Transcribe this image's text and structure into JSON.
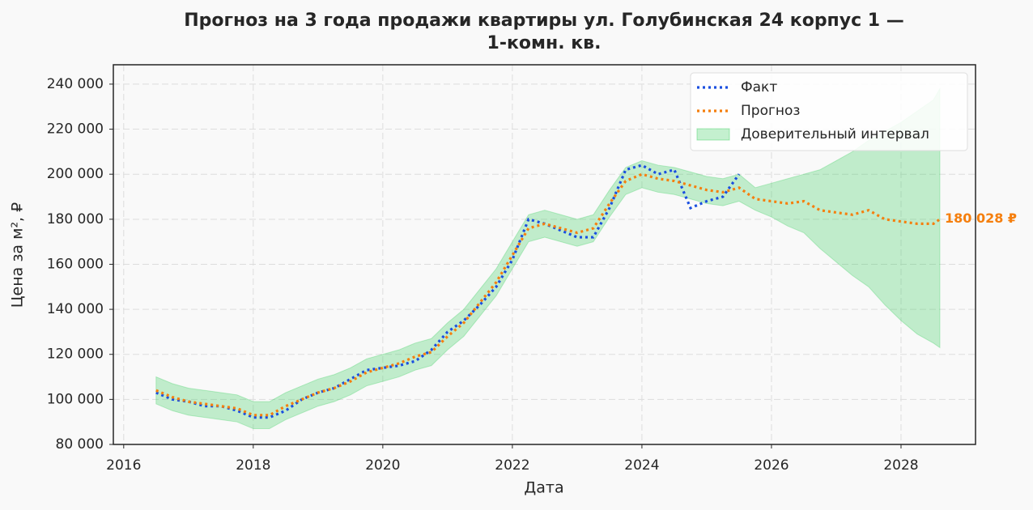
{
  "chart_data": {
    "type": "line",
    "title": [
      "Прогноз на 3 года продажи квартиры  ул. Голубинская 24 корпус 1 —",
      "1-комн. кв."
    ],
    "x_label": "Дата",
    "y_label": "Цена за м², ₽",
    "xlim": [
      2015.84,
      2029.15
    ],
    "xticks": [
      2016,
      2018,
      2020,
      2022,
      2024,
      2026,
      2028
    ],
    "ylim": [
      80000,
      248600
    ],
    "yticks": [
      {
        "value": 80000,
        "label": "80 000"
      },
      {
        "value": 100000,
        "label": "100 000"
      },
      {
        "value": 120000,
        "label": "120 000"
      },
      {
        "value": 140000,
        "label": "140 000"
      },
      {
        "value": 160000,
        "label": "160 000"
      },
      {
        "value": 180000,
        "label": "180 000"
      },
      {
        "value": 200000,
        "label": "200 000"
      },
      {
        "value": 220000,
        "label": "220 000"
      },
      {
        "value": 240000,
        "label": "240 000"
      }
    ],
    "grid": true,
    "legend": "upper right",
    "series": [
      {
        "name": "Факт",
        "color": "#1a4fe0",
        "x": [
          2016.5,
          2016.75,
          2017,
          2017.25,
          2017.5,
          2017.75,
          2018,
          2018.25,
          2018.5,
          2018.75,
          2019,
          2019.25,
          2019.5,
          2019.75,
          2020,
          2020.25,
          2020.5,
          2020.75,
          2021,
          2021.25,
          2021.5,
          2021.75,
          2022,
          2022.25,
          2022.5,
          2022.75,
          2023,
          2023.25,
          2023.5,
          2023.75,
          2024,
          2024.25,
          2024.5,
          2024.75,
          2025,
          2025.25,
          2025.5
        ],
        "values": [
          103000,
          100000,
          99000,
          97000,
          97000,
          95000,
          92000,
          92000,
          95000,
          100000,
          103000,
          105000,
          109000,
          113000,
          114000,
          115000,
          117000,
          122000,
          130000,
          135000,
          142000,
          150000,
          162000,
          180000,
          178000,
          175000,
          172000,
          172000,
          185000,
          202000,
          204000,
          200000,
          202000,
          185000,
          188000,
          190000,
          200000
        ]
      },
      {
        "name": "Прогноз",
        "color": "#f57f0e",
        "x": [
          2016.5,
          2016.75,
          2017,
          2017.25,
          2017.5,
          2017.75,
          2018,
          2018.25,
          2018.5,
          2018.75,
          2019,
          2019.25,
          2019.5,
          2019.75,
          2020,
          2020.25,
          2020.5,
          2020.75,
          2021,
          2021.25,
          2021.5,
          2021.75,
          2022,
          2022.25,
          2022.5,
          2022.75,
          2023,
          2023.25,
          2023.5,
          2023.75,
          2024,
          2024.25,
          2024.5,
          2024.75,
          2025,
          2025.25,
          2025.5,
          2025.75,
          2026,
          2026.25,
          2026.5,
          2026.75,
          2027,
          2027.25,
          2027.5,
          2027.75,
          2028,
          2028.25,
          2028.5,
          2028.6
        ],
        "values": [
          104000,
          101000,
          99000,
          98000,
          97000,
          96000,
          93000,
          93000,
          97000,
          100000,
          103000,
          105000,
          108000,
          112000,
          114000,
          116000,
          119000,
          121000,
          128000,
          134000,
          143000,
          152000,
          164000,
          176000,
          178000,
          176000,
          174000,
          176000,
          187000,
          197000,
          200000,
          198000,
          197000,
          195000,
          193000,
          192000,
          194000,
          189000,
          188000,
          187000,
          188000,
          184000,
          183000,
          182000,
          184000,
          180000,
          179000,
          178000,
          178000,
          180028
        ]
      },
      {
        "name": "Доверительный интервал",
        "color": "#2ecc55",
        "x": [
          2016.5,
          2016.75,
          2017,
          2017.25,
          2017.5,
          2017.75,
          2018,
          2018.25,
          2018.5,
          2018.75,
          2019,
          2019.25,
          2019.5,
          2019.75,
          2020,
          2020.25,
          2020.5,
          2020.75,
          2021,
          2021.25,
          2021.5,
          2021.75,
          2022,
          2022.25,
          2022.5,
          2022.75,
          2023,
          2023.25,
          2023.5,
          2023.75,
          2024,
          2024.25,
          2024.5,
          2024.75,
          2025,
          2025.25,
          2025.5,
          2025.75,
          2026,
          2026.25,
          2026.5,
          2026.75,
          2027,
          2027.25,
          2027.5,
          2027.75,
          2028,
          2028.25,
          2028.5,
          2028.6
        ],
        "lower": [
          98000,
          95000,
          93000,
          92000,
          91000,
          90000,
          87000,
          87000,
          91000,
          94000,
          97000,
          99000,
          102000,
          106000,
          108000,
          110000,
          113000,
          115000,
          122000,
          128000,
          137000,
          146000,
          158000,
          170000,
          172000,
          170000,
          168000,
          170000,
          181000,
          191000,
          194000,
          192000,
          191000,
          189000,
          187000,
          186000,
          188000,
          184000,
          181000,
          177000,
          174000,
          167000,
          161000,
          155000,
          150000,
          142000,
          135000,
          129000,
          125000,
          123000
        ],
        "upper": [
          110000,
          107000,
          105000,
          104000,
          103000,
          102000,
          99000,
          99000,
          103000,
          106000,
          109000,
          111000,
          114000,
          118000,
          120000,
          122000,
          125000,
          127000,
          134000,
          140000,
          149000,
          158000,
          170000,
          182000,
          184000,
          182000,
          180000,
          182000,
          193000,
          203000,
          206000,
          204000,
          203000,
          201000,
          199000,
          198000,
          200000,
          194000,
          196000,
          198000,
          200000,
          202000,
          206000,
          210000,
          215000,
          219000,
          223000,
          228000,
          233000,
          238000
        ]
      }
    ],
    "annotation": {
      "label": "180 028 ₽",
      "value": 180028,
      "x": 2028.6
    }
  }
}
